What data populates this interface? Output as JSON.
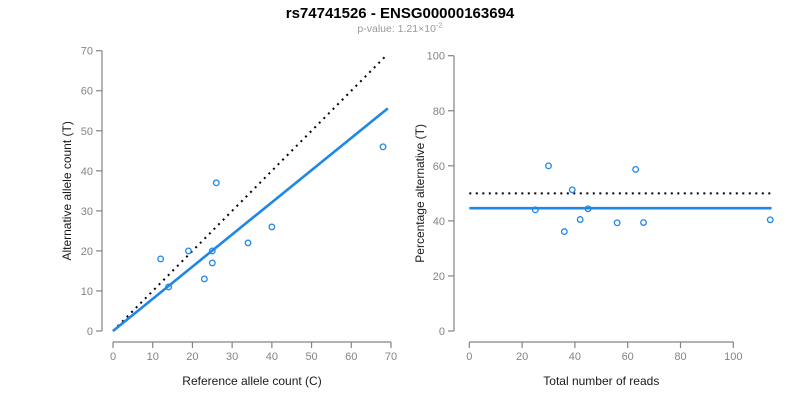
{
  "figure": {
    "title": "rs74741526 - ENSG00000163694",
    "subtitle": {
      "text": "p-value: 1.21×10",
      "exponent": "-2"
    },
    "colors": {
      "accent_blue": "#1e87e8",
      "line_black": "#000000",
      "axis_gray": "#848484",
      "label_black": "#1a1a1a",
      "subtitle_gray": "#999999"
    }
  },
  "chart_data": [
    {
      "type": "scatter",
      "name": "reference-vs-alternative-counts",
      "xlabel": "Reference allele count (C)",
      "ylabel": "Alternative allele count (T)",
      "xlim": [
        0,
        70
      ],
      "ylim": [
        0,
        70
      ],
      "xticks": [
        0,
        10,
        20,
        30,
        40,
        50,
        60,
        70
      ],
      "yticks": [
        0,
        10,
        20,
        30,
        40,
        50,
        60,
        70
      ],
      "grid": false,
      "legend": "none",
      "marker": "open-circle",
      "points": [
        [
          12,
          18
        ],
        [
          14,
          11
        ],
        [
          19,
          20
        ],
        [
          23,
          13
        ],
        [
          25,
          17
        ],
        [
          25,
          20
        ],
        [
          26,
          37
        ],
        [
          34,
          22
        ],
        [
          40,
          26
        ],
        [
          68,
          46
        ]
      ],
      "lines": [
        {
          "name": "identity",
          "style": "dotted",
          "color": "#000000",
          "x1": 0,
          "y1": 0,
          "x2": 68.6,
          "y2": 68.6
        },
        {
          "name": "regression",
          "style": "solid",
          "color": "#1e87e8",
          "x1": 0,
          "y1": 0,
          "x2": 69.2,
          "y2": 55.6
        }
      ]
    },
    {
      "type": "scatter",
      "name": "reads-vs-percentage-alternative",
      "xlabel": "Total number of reads",
      "ylabel": "Percentage alternative (T)",
      "xlim": [
        0,
        115
      ],
      "ylim": [
        0,
        100
      ],
      "xticks": [
        0,
        20,
        40,
        60,
        80,
        100
      ],
      "yticks": [
        0,
        20,
        40,
        60,
        80,
        100
      ],
      "grid": false,
      "legend": "none",
      "marker": "open-circle",
      "points": [
        [
          25,
          44
        ],
        [
          30,
          60
        ],
        [
          36,
          36.1
        ],
        [
          39,
          51.3
        ],
        [
          42,
          40.5
        ],
        [
          45,
          44.4
        ],
        [
          56,
          39.3
        ],
        [
          63,
          58.7
        ],
        [
          66,
          39.4
        ],
        [
          114,
          40.4
        ]
      ],
      "lines": [
        {
          "name": "expected-50-percent",
          "style": "dotted",
          "color": "#000000",
          "x1": 0,
          "y1": 50,
          "x2": 114.5,
          "y2": 50
        },
        {
          "name": "mean-percentage",
          "style": "solid",
          "color": "#1e87e8",
          "x1": 0,
          "y1": 44.6,
          "x2": 114.5,
          "y2": 44.6
        }
      ]
    }
  ]
}
